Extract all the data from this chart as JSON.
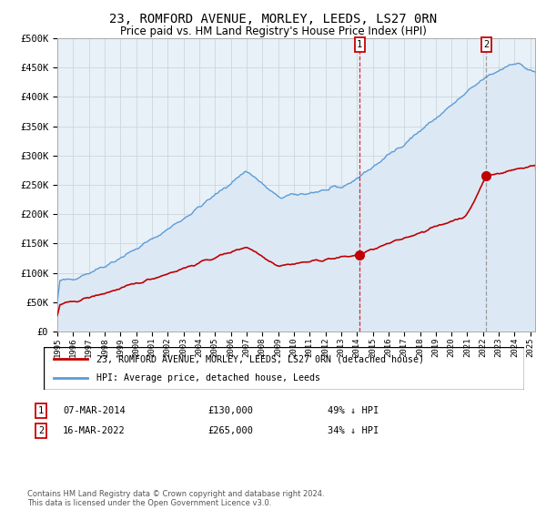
{
  "title": "23, ROMFORD AVENUE, MORLEY, LEEDS, LS27 0RN",
  "subtitle": "Price paid vs. HM Land Registry's House Price Index (HPI)",
  "title_fontsize": 10,
  "subtitle_fontsize": 8.5,
  "ylabel_ticks": [
    "£0",
    "£50K",
    "£100K",
    "£150K",
    "£200K",
    "£250K",
    "£300K",
    "£350K",
    "£400K",
    "£450K",
    "£500K"
  ],
  "ylabel_values": [
    0,
    50000,
    100000,
    150000,
    200000,
    250000,
    300000,
    350000,
    400000,
    450000,
    500000
  ],
  "ylim": [
    0,
    500000
  ],
  "xlim_start": 1995.0,
  "xlim_end": 2025.3,
  "hpi_color": "#5b9bd5",
  "hpi_fill_color": "#dce9f5",
  "price_color": "#c00000",
  "transaction1_date": 2014.18,
  "transaction1_price": 130000,
  "transaction2_date": 2022.21,
  "transaction2_price": 265000,
  "legend_label1": "23, ROMFORD AVENUE, MORLEY, LEEDS, LS27 0RN (detached house)",
  "legend_label2": "HPI: Average price, detached house, Leeds",
  "table_row1": [
    "1",
    "07-MAR-2014",
    "£130,000",
    "49% ↓ HPI"
  ],
  "table_row2": [
    "2",
    "16-MAR-2022",
    "£265,000",
    "34% ↓ HPI"
  ],
  "footnote": "Contains HM Land Registry data © Crown copyright and database right 2024.\nThis data is licensed under the Open Government Licence v3.0.",
  "bg_color": "#e8f0f8",
  "grid_color": "#c8d0d8",
  "xtick_years": [
    1995,
    1996,
    1997,
    1998,
    1999,
    2000,
    2001,
    2002,
    2003,
    2004,
    2005,
    2006,
    2007,
    2008,
    2009,
    2010,
    2011,
    2012,
    2013,
    2014,
    2015,
    2016,
    2017,
    2018,
    2019,
    2020,
    2021,
    2022,
    2023,
    2024,
    2025
  ]
}
